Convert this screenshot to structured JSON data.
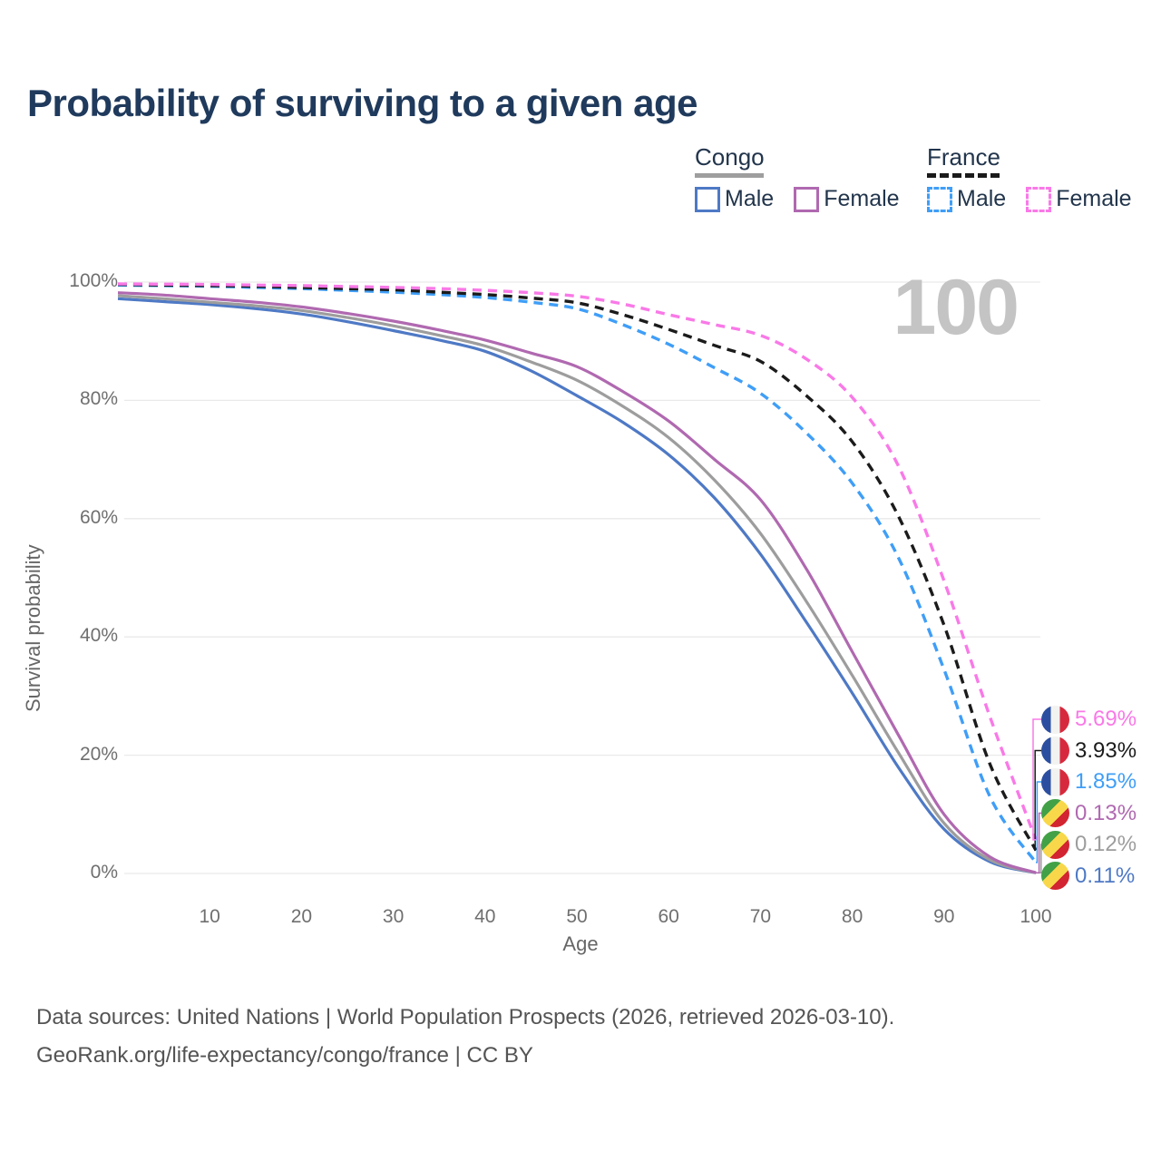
{
  "title": "Probability of surviving to a given age",
  "watermark": "100",
  "legend": {
    "groups": [
      {
        "id": "congo",
        "label": "Congo",
        "line_style": "solid",
        "line_color": "#9e9e9e",
        "items": [
          {
            "label": "Male",
            "color": "#4e79c5",
            "style": "solid"
          },
          {
            "label": "Female",
            "color": "#b069b0",
            "style": "solid"
          }
        ]
      },
      {
        "id": "france",
        "label": "France",
        "line_style": "dashed",
        "line_color": "#1a1a1a",
        "items": [
          {
            "label": "Male",
            "color": "#3f9ef7",
            "style": "dashed"
          },
          {
            "label": "Female",
            "color": "#f979e7",
            "style": "dashed"
          }
        ]
      }
    ]
  },
  "chart_data": {
    "type": "line",
    "title": "Probability of surviving to a given age",
    "xlabel": "Age",
    "ylabel": "Survival probability",
    "xlim": [
      0,
      100
    ],
    "ylim": [
      0,
      100
    ],
    "grid": "horizontal",
    "x_ticks": [
      10,
      20,
      30,
      40,
      50,
      60,
      70,
      80,
      90,
      100
    ],
    "y_ticks": [
      {
        "value": 0,
        "label": "0%"
      },
      {
        "value": 20,
        "label": "20%"
      },
      {
        "value": 40,
        "label": "40%"
      },
      {
        "value": 60,
        "label": "60%"
      },
      {
        "value": 80,
        "label": "80%"
      },
      {
        "value": 100,
        "label": "100%"
      }
    ],
    "series": [
      {
        "name": "Congo Male",
        "country": "congo",
        "sex": "male",
        "color": "#4e79c5",
        "dash": false,
        "end_label": "0.11%",
        "label_row": 5,
        "points": [
          [
            0,
            97.2
          ],
          [
            5,
            96.7
          ],
          [
            10,
            96.2
          ],
          [
            15,
            95.5
          ],
          [
            20,
            94.6
          ],
          [
            25,
            93.3
          ],
          [
            30,
            91.8
          ],
          [
            35,
            90.2
          ],
          [
            40,
            88.3
          ],
          [
            45,
            85.0
          ],
          [
            50,
            80.8
          ],
          [
            55,
            76.3
          ],
          [
            60,
            70.8
          ],
          [
            65,
            63.5
          ],
          [
            70,
            54.0
          ],
          [
            75,
            42.5
          ],
          [
            80,
            30.5
          ],
          [
            85,
            18.0
          ],
          [
            90,
            7.5
          ],
          [
            95,
            2.0
          ],
          [
            100,
            0.11
          ]
        ]
      },
      {
        "name": "Congo Both sexes",
        "country": "congo",
        "sex": "both",
        "color": "#9d9d9d",
        "dash": false,
        "end_label": "0.12%",
        "label_row": 4,
        "points": [
          [
            0,
            97.7
          ],
          [
            5,
            97.2
          ],
          [
            10,
            96.6
          ],
          [
            15,
            96.0
          ],
          [
            20,
            95.2
          ],
          [
            25,
            94.0
          ],
          [
            30,
            92.6
          ],
          [
            35,
            91.0
          ],
          [
            40,
            89.2
          ],
          [
            45,
            86.5
          ],
          [
            50,
            83.4
          ],
          [
            55,
            79.0
          ],
          [
            60,
            73.7
          ],
          [
            65,
            66.5
          ],
          [
            70,
            57.5
          ],
          [
            75,
            46.0
          ],
          [
            80,
            33.5
          ],
          [
            85,
            20.5
          ],
          [
            90,
            8.5
          ],
          [
            95,
            2.3
          ],
          [
            100,
            0.12
          ]
        ]
      },
      {
        "name": "Congo Female",
        "country": "congo",
        "sex": "female",
        "color": "#b069b0",
        "dash": false,
        "end_label": "0.13%",
        "label_row": 3,
        "points": [
          [
            0,
            98.2
          ],
          [
            5,
            97.8
          ],
          [
            10,
            97.2
          ],
          [
            15,
            96.6
          ],
          [
            20,
            95.8
          ],
          [
            25,
            94.7
          ],
          [
            30,
            93.4
          ],
          [
            35,
            91.9
          ],
          [
            40,
            90.2
          ],
          [
            45,
            88.0
          ],
          [
            50,
            85.7
          ],
          [
            55,
            81.5
          ],
          [
            60,
            76.5
          ],
          [
            65,
            70.0
          ],
          [
            70,
            63.2
          ],
          [
            75,
            51.5
          ],
          [
            80,
            37.5
          ],
          [
            85,
            23.5
          ],
          [
            90,
            10.0
          ],
          [
            95,
            2.8
          ],
          [
            100,
            0.13
          ]
        ]
      },
      {
        "name": "France Male",
        "country": "france",
        "sex": "male",
        "color": "#3f9ef7",
        "dash": true,
        "end_label": "1.85%",
        "label_row": 2,
        "points": [
          [
            0,
            99.5
          ],
          [
            5,
            99.4
          ],
          [
            10,
            99.3
          ],
          [
            15,
            99.1
          ],
          [
            20,
            98.9
          ],
          [
            25,
            98.6
          ],
          [
            30,
            98.3
          ],
          [
            35,
            97.9
          ],
          [
            40,
            97.4
          ],
          [
            45,
            96.6
          ],
          [
            50,
            95.5
          ],
          [
            55,
            92.8
          ],
          [
            60,
            89.5
          ],
          [
            65,
            85.5
          ],
          [
            70,
            81.2
          ],
          [
            75,
            74.5
          ],
          [
            80,
            66.0
          ],
          [
            85,
            53.5
          ],
          [
            90,
            34.5
          ],
          [
            95,
            13.0
          ],
          [
            100,
            1.85
          ]
        ]
      },
      {
        "name": "France Both sexes",
        "country": "france",
        "sex": "both",
        "color": "#1b1b1b",
        "dash": true,
        "end_label": "3.93%",
        "label_row": 1,
        "points": [
          [
            0,
            99.6
          ],
          [
            5,
            99.5
          ],
          [
            10,
            99.4
          ],
          [
            15,
            99.3
          ],
          [
            20,
            99.1
          ],
          [
            25,
            98.9
          ],
          [
            30,
            98.7
          ],
          [
            35,
            98.3
          ],
          [
            40,
            97.9
          ],
          [
            45,
            97.3
          ],
          [
            50,
            96.5
          ],
          [
            55,
            94.5
          ],
          [
            60,
            92.0
          ],
          [
            65,
            89.3
          ],
          [
            70,
            86.6
          ],
          [
            75,
            80.8
          ],
          [
            80,
            73.0
          ],
          [
            85,
            60.5
          ],
          [
            90,
            42.0
          ],
          [
            95,
            18.5
          ],
          [
            100,
            3.93
          ]
        ]
      },
      {
        "name": "France Female",
        "country": "france",
        "sex": "female",
        "color": "#f979e7",
        "dash": true,
        "end_label": "5.69%",
        "label_row": 0,
        "points": [
          [
            0,
            99.7
          ],
          [
            5,
            99.65
          ],
          [
            10,
            99.6
          ],
          [
            15,
            99.5
          ],
          [
            20,
            99.4
          ],
          [
            25,
            99.25
          ],
          [
            30,
            99.1
          ],
          [
            35,
            98.9
          ],
          [
            40,
            98.6
          ],
          [
            45,
            98.2
          ],
          [
            50,
            97.6
          ],
          [
            55,
            96.3
          ],
          [
            60,
            94.5
          ],
          [
            65,
            92.8
          ],
          [
            70,
            91.0
          ],
          [
            75,
            87.0
          ],
          [
            80,
            80.5
          ],
          [
            85,
            69.0
          ],
          [
            90,
            49.5
          ],
          [
            95,
            26.5
          ],
          [
            100,
            5.69
          ]
        ]
      }
    ]
  },
  "footer": {
    "line1": "Data sources: United Nations | World Population Prospects (2026, retrieved 2026-03-10).",
    "line2": "GeoRank.org/life-expectancy/congo/france | CC BY"
  }
}
